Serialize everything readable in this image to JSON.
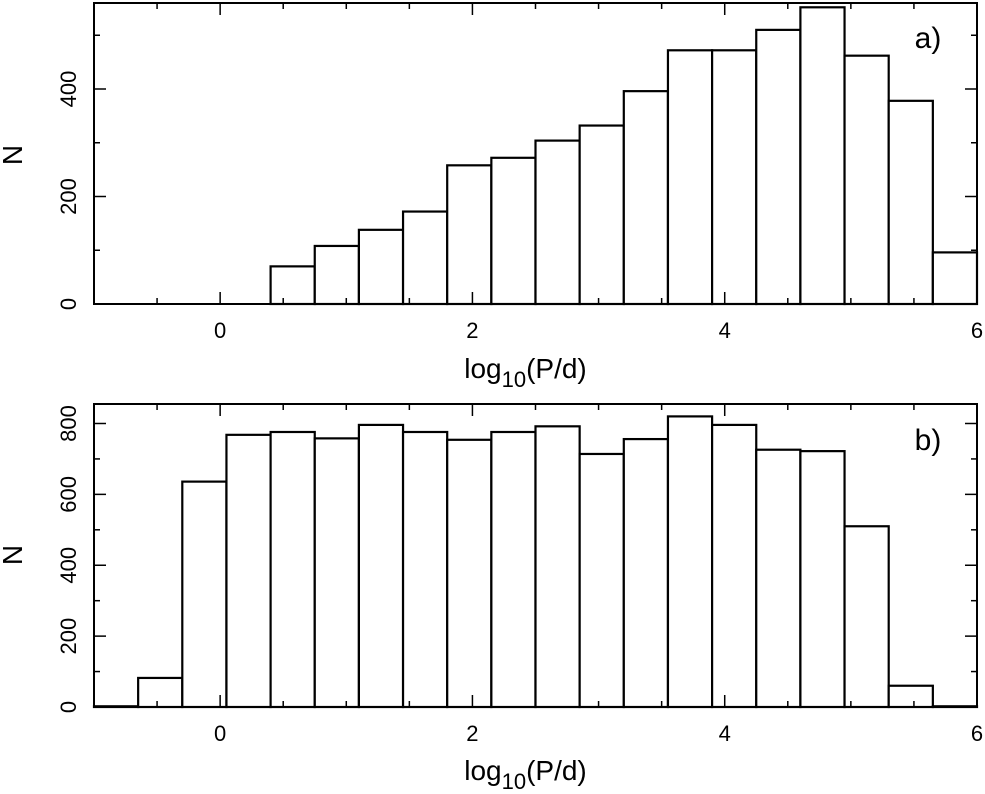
{
  "chart_data": [
    {
      "type": "bar",
      "panel_label": "a)",
      "xlabel": "log10(P/d)",
      "xlabel_parts": {
        "base": "log",
        "sub": "10",
        "rest": "(P/d)"
      },
      "ylabel": "N",
      "xlim": [
        -1.0,
        6.0
      ],
      "ylim": [
        0,
        560
      ],
      "xticks": [
        0,
        2,
        4,
        6
      ],
      "yticks": [
        0,
        200,
        400
      ],
      "bin_edges": [
        -1.0,
        -0.65,
        -0.3,
        0.05,
        0.4,
        0.75,
        1.1,
        1.45,
        1.8,
        2.15,
        2.5,
        2.85,
        3.2,
        3.55,
        3.9,
        4.25,
        4.6,
        4.95,
        5.3,
        5.65,
        6.0
      ],
      "values": [
        0,
        0,
        0,
        0,
        70,
        108,
        138,
        172,
        258,
        272,
        304,
        332,
        396,
        472,
        472,
        510,
        552,
        462,
        378,
        96
      ]
    },
    {
      "type": "bar",
      "panel_label": "b)",
      "xlabel": "log10(P/d)",
      "xlabel_parts": {
        "base": "log",
        "sub": "10",
        "rest": "(P/d)"
      },
      "ylabel": "N",
      "xlim": [
        -1.0,
        6.0
      ],
      "ylim": [
        0,
        855
      ],
      "xticks": [
        0,
        2,
        4,
        6
      ],
      "yticks": [
        0,
        200,
        400,
        600,
        800
      ],
      "bin_edges": [
        -1.0,
        -0.65,
        -0.3,
        0.05,
        0.4,
        0.75,
        1.1,
        1.45,
        1.8,
        2.15,
        2.5,
        2.85,
        3.2,
        3.55,
        3.9,
        4.25,
        4.6,
        4.95,
        5.3,
        5.65,
        6.0
      ],
      "values": [
        2,
        82,
        636,
        768,
        776,
        758,
        796,
        776,
        754,
        776,
        792,
        714,
        756,
        820,
        796,
        726,
        722,
        510,
        60,
        2
      ]
    }
  ]
}
